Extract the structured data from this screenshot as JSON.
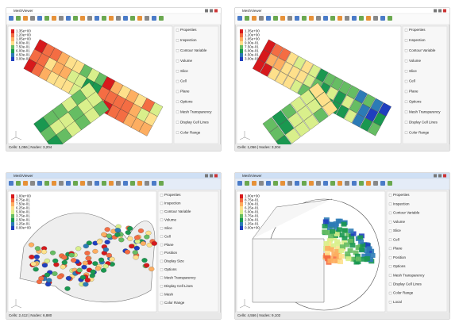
{
  "panels": [
    {
      "title": "MeshViewer",
      "legend": [
        "1.35e+00",
        "1.20e+00",
        "1.05e+00",
        "9.00e-01",
        "7.50e-01",
        "6.00e-01",
        "4.50e-01",
        "3.00e-01"
      ],
      "sidebar": [
        "Properties",
        "Inspection",
        "Contour Variable",
        "Volume",
        "Slice",
        "Cell",
        "Plane",
        "Options",
        "Mesh Transparency",
        "Display Cell Lines",
        "Color Range"
      ],
      "status": "Cells: 1,056 | Nodes: 3,204"
    },
    {
      "title": "MeshViewer",
      "legend": [
        "1.35e+00",
        "1.20e+00",
        "1.05e+00",
        "9.00e-01",
        "7.50e-01",
        "6.00e-01",
        "4.50e-01",
        "3.00e-01"
      ],
      "sidebar": [
        "Properties",
        "Inspection",
        "Contour Variable",
        "Volume",
        "Slice",
        "Cell",
        "Plane",
        "Options",
        "Mesh Transparency",
        "Display Cell Lines",
        "Color Range"
      ],
      "status": "Cells: 1,056 | Nodes: 3,204"
    },
    {
      "title": "MeshViewer",
      "legend": [
        "1.00e+00",
        "8.75e-01",
        "7.50e-01",
        "6.25e-01",
        "5.00e-01",
        "3.75e-01",
        "2.50e-01",
        "1.25e-01",
        "0.00e+00"
      ],
      "sidebar": [
        "Properties",
        "Inspection",
        "Contour Variable",
        "Volume",
        "Slice",
        "Cell",
        "Plane",
        "Position",
        "Display Size",
        "Options",
        "Mesh Transparency",
        "Display Cell Lines",
        "Mesh",
        "Color Range"
      ],
      "status": "Cells: 2,412 | Nodes: 6,880"
    },
    {
      "title": "MeshViewer",
      "legend": [
        "1.00e+00",
        "8.75e-01",
        "7.50e-01",
        "6.25e-01",
        "5.00e-01",
        "3.75e-01",
        "2.50e-01",
        "1.25e-01",
        "0.00e+00"
      ],
      "sidebar": [
        "Properties",
        "Inspection",
        "Contour Variable",
        "Volume",
        "Slice",
        "Cell",
        "Plane",
        "Position",
        "Options",
        "Mesh Transparency",
        "Display Cell Lines",
        "Color Range",
        "Local"
      ],
      "status": "Cells: 4,556 | Nodes: 9,102"
    }
  ]
}
